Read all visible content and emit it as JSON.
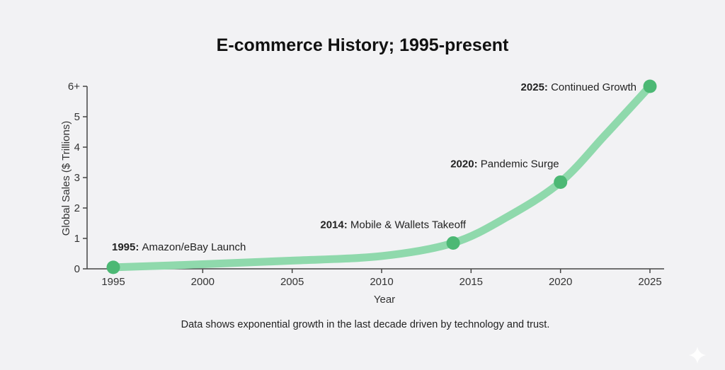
{
  "chart_data": {
    "type": "line",
    "title": "E-commerce History; 1995-present",
    "xlabel": "Year",
    "ylabel": "Global Sales ($ Trillions)",
    "xlim": [
      1995,
      2025
    ],
    "ylim": [
      0,
      6
    ],
    "x_ticks": [
      1995,
      2000,
      2005,
      2010,
      2015,
      2020,
      2025
    ],
    "x_tick_labels": [
      "1995",
      "2000",
      "2005",
      "2010",
      "2015",
      "2020",
      "2025"
    ],
    "y_ticks": [
      0,
      1,
      2,
      3,
      4,
      5,
      6
    ],
    "y_tick_labels": [
      "0",
      "1",
      "2",
      "3",
      "4",
      "5",
      "6+"
    ],
    "grid": false,
    "series": [
      {
        "name": "Global Sales",
        "color": "#8fd9ac",
        "x": [
          1995,
          2000,
          2005,
          2010,
          2014,
          2017,
          2020,
          2022.5,
          2025
        ],
        "y": [
          0.05,
          0.15,
          0.27,
          0.42,
          0.85,
          1.7,
          2.85,
          4.4,
          6.0
        ]
      }
    ],
    "markers": [
      {
        "x": 1995,
        "y": 0.05,
        "year": "1995:",
        "label": "Amazon/eBay Launch",
        "color": "#4cb874"
      },
      {
        "x": 2014,
        "y": 0.85,
        "year": "2014:",
        "label": "Mobile & Wallets Takeoff",
        "color": "#4cb874"
      },
      {
        "x": 2020,
        "y": 2.85,
        "year": "2020:",
        "label": "Pandemic Surge",
        "color": "#4cb874"
      },
      {
        "x": 2025,
        "y": 6.0,
        "year": "2025:",
        "label": "Continued Growth",
        "color": "#4cb874"
      }
    ],
    "caption": "Data shows exponential growth in the last decade driven by technology and trust."
  },
  "decorations": {
    "corner_icon": "sparkle-icon"
  }
}
